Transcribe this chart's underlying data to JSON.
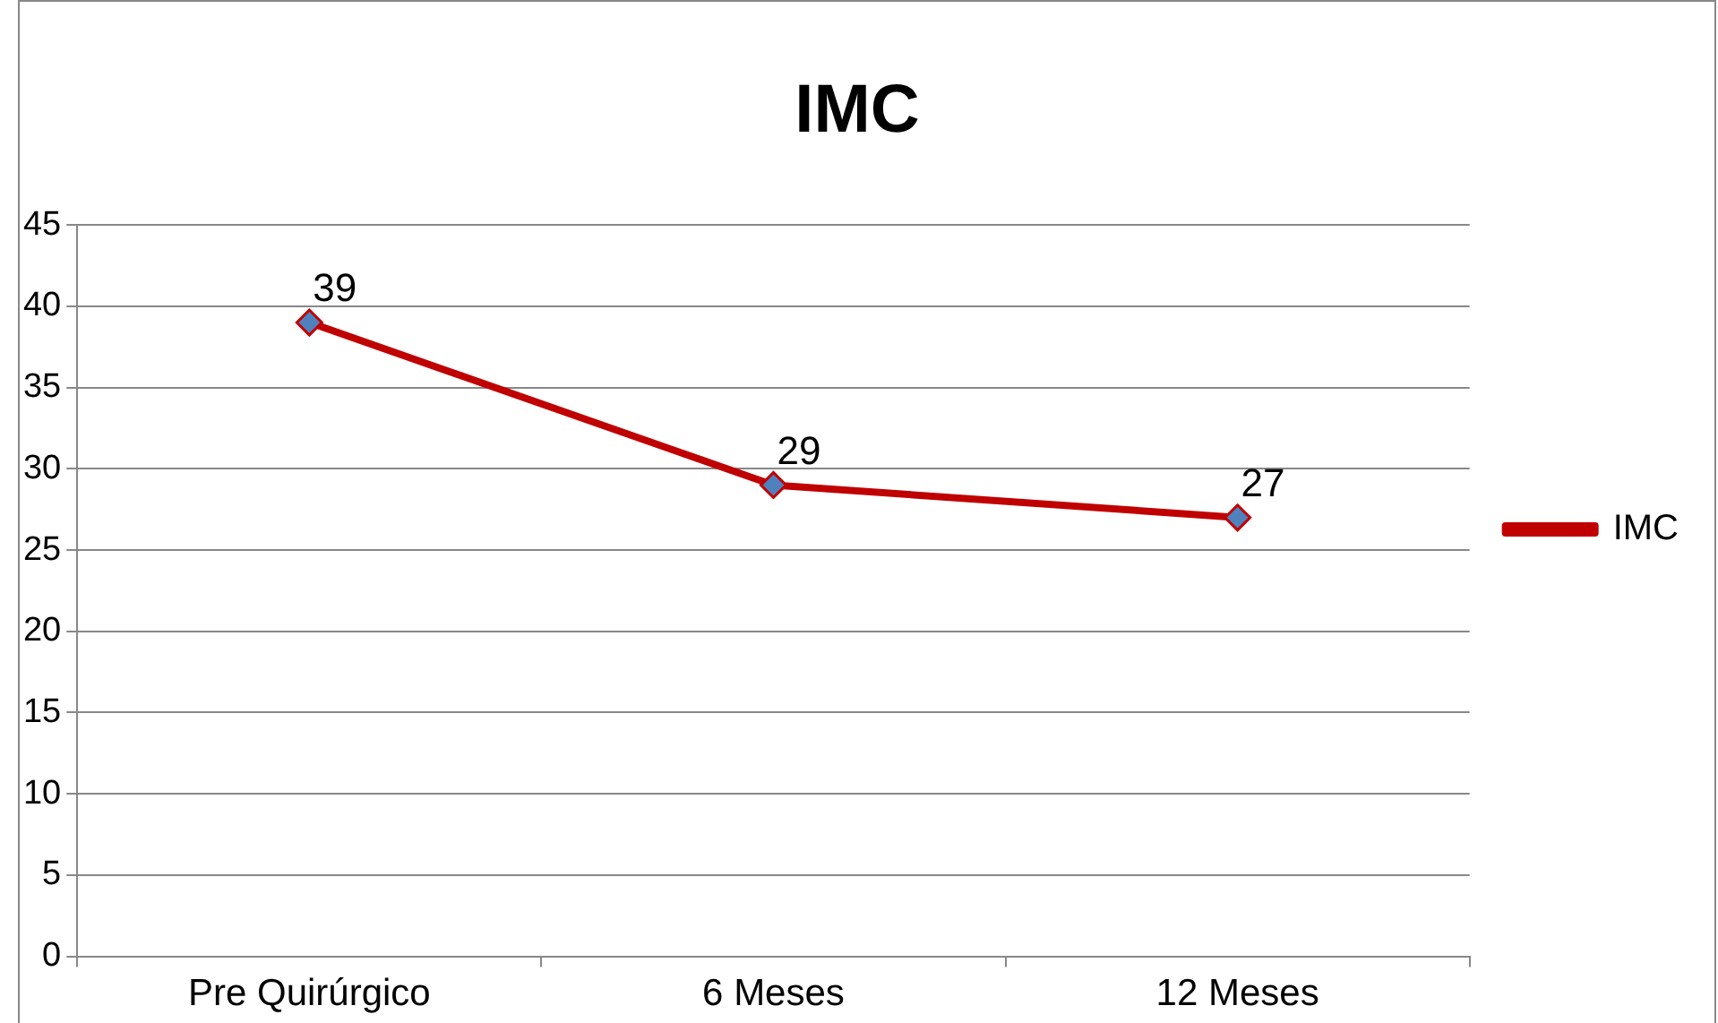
{
  "chart_data": {
    "type": "line",
    "title": "IMC",
    "categories": [
      "Pre Quirúrgico",
      "6 Meses",
      "12 Meses"
    ],
    "series": [
      {
        "name": "IMC",
        "color": "#c00000",
        "values": [
          39,
          29,
          27
        ]
      }
    ],
    "ylim": [
      0,
      45
    ],
    "yticks": [
      0,
      5,
      10,
      15,
      20,
      25,
      30,
      35,
      40,
      45
    ],
    "grid": "y",
    "legend": "right",
    "marker": "diamond",
    "line_style": "solid",
    "data_labels": true
  }
}
